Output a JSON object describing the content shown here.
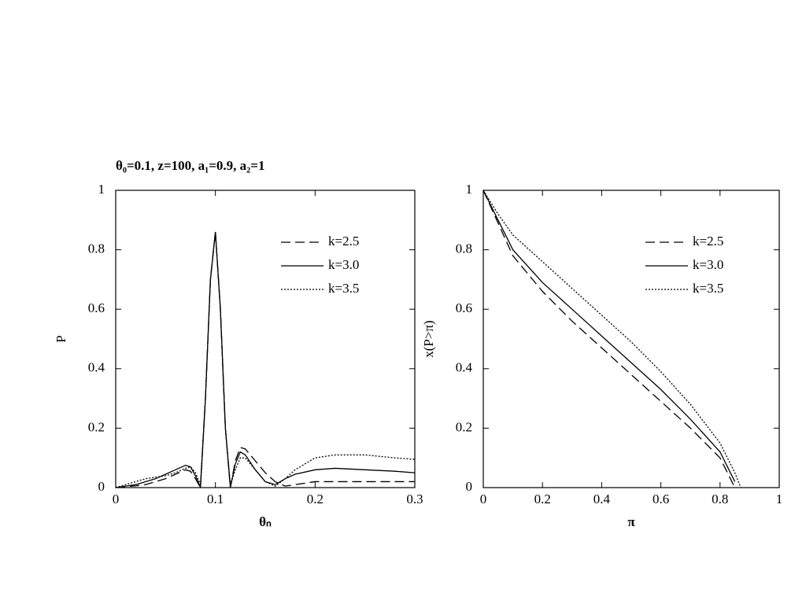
{
  "chart_data": [
    {
      "type": "line",
      "title": "θ₀=0.1, z=100, a₁=0.9, a₂=1",
      "x_label": "θₙ",
      "y_label": "P",
      "x": [
        0,
        0.01,
        0.02,
        0.03,
        0.04,
        0.05,
        0.06,
        0.07,
        0.075,
        0.08,
        0.085,
        0.09,
        0.095,
        0.1,
        0.105,
        0.11,
        0.115,
        0.12,
        0.125,
        0.13,
        0.14,
        0.15,
        0.16,
        0.17,
        0.18,
        0.2,
        0.22,
        0.25,
        0.28,
        0.3
      ],
      "series": [
        {
          "name": "k=2.5",
          "color": "#000000",
          "style": "dashed",
          "values": [
            0,
            0.003,
            0.006,
            0.01,
            0.02,
            0.03,
            0.045,
            0.06,
            0.055,
            0.03,
            0,
            0.3,
            0.7,
            0.86,
            0.6,
            0.2,
            0,
            0.09,
            0.135,
            0.13,
            0.09,
            0.05,
            0.02,
            0.005,
            0.01,
            0.02,
            0.02,
            0.02,
            0.02,
            0.02
          ]
        },
        {
          "name": "k=3.0",
          "color": "#000000",
          "style": "solid",
          "values": [
            0,
            0.005,
            0.01,
            0.02,
            0.03,
            0.045,
            0.06,
            0.075,
            0.07,
            0.04,
            0,
            0.3,
            0.7,
            0.86,
            0.6,
            0.2,
            0,
            0.08,
            0.12,
            0.11,
            0.06,
            0.02,
            0.01,
            0.03,
            0.045,
            0.06,
            0.065,
            0.06,
            0.055,
            0.05
          ]
        },
        {
          "name": "k=3.5",
          "color": "#000000",
          "style": "dotted",
          "values": [
            0,
            0.01,
            0.02,
            0.03,
            0.035,
            0.04,
            0.05,
            0.065,
            0.07,
            0.05,
            0.01,
            0.3,
            0.7,
            0.86,
            0.6,
            0.2,
            0.01,
            0.06,
            0.1,
            0.1,
            0.06,
            0.02,
            0.005,
            0.03,
            0.06,
            0.1,
            0.11,
            0.11,
            0.1,
            0.095
          ]
        }
      ],
      "xlim": [
        0,
        0.3
      ],
      "xticks": [
        0,
        0.1,
        0.2,
        0.3
      ],
      "ylim": [
        0,
        1
      ],
      "yticks": [
        0,
        0.2,
        0.4,
        0.6,
        0.8,
        1
      ],
      "legend": "upper right"
    },
    {
      "type": "line",
      "x_label": "π",
      "y_label": "x(P>π)",
      "x": [
        0,
        0.05,
        0.1,
        0.2,
        0.3,
        0.4,
        0.5,
        0.6,
        0.7,
        0.8,
        0.85,
        0.87
      ],
      "series": [
        {
          "name": "k=2.5",
          "color": "#000000",
          "style": "dashed",
          "values": [
            1,
            0.89,
            0.78,
            0.66,
            0.56,
            0.47,
            0.38,
            0.29,
            0.2,
            0.1,
            0,
            null
          ]
        },
        {
          "name": "k=3.0",
          "color": "#000000",
          "style": "solid",
          "values": [
            1,
            0.9,
            0.8,
            0.69,
            0.6,
            0.51,
            0.42,
            0.33,
            0.23,
            0.12,
            0.02,
            null
          ]
        },
        {
          "name": "k=3.5",
          "color": "#000000",
          "style": "dotted",
          "values": [
            1,
            0.92,
            0.85,
            0.76,
            0.67,
            0.58,
            0.49,
            0.39,
            0.28,
            0.15,
            0.05,
            0
          ]
        }
      ],
      "xlim": [
        0,
        1
      ],
      "xticks": [
        0,
        0.2,
        0.4,
        0.6,
        0.8,
        1
      ],
      "ylim": [
        0,
        1
      ],
      "yticks": [
        0,
        0.2,
        0.4,
        0.6,
        0.8,
        1
      ],
      "legend": "upper right"
    }
  ]
}
